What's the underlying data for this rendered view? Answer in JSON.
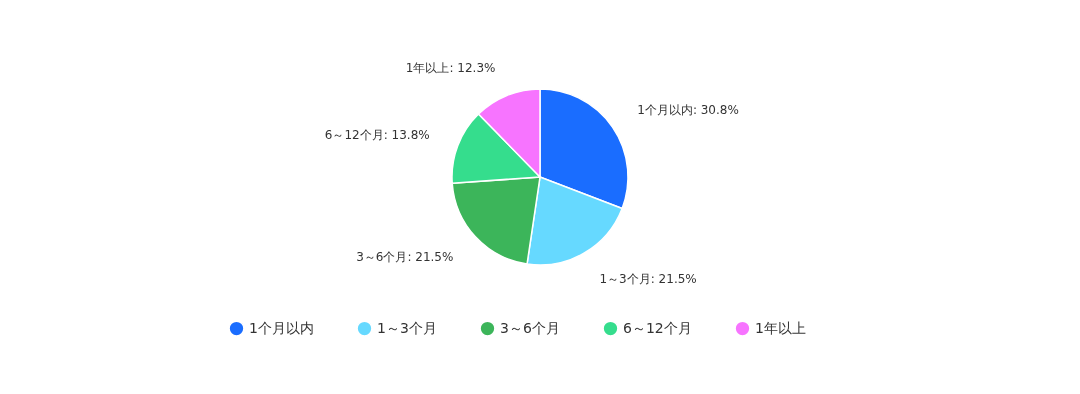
{
  "chart_data": {
    "type": "pie",
    "categories": [
      "1个月以内",
      "1～3个月",
      "3～6个月",
      "6～12个月",
      "1年以上"
    ],
    "values": [
      30.8,
      21.5,
      21.5,
      13.8,
      12.3
    ],
    "colors": [
      "#1a6dff",
      "#66d9ff",
      "#3cb55a",
      "#35dd8d",
      "#f774ff"
    ],
    "value_labels": [
      "1个月以内: 30.8%",
      "1～3个月: 21.5%",
      "3～6个月: 21.5%",
      "6～12个月: 13.8%",
      "1年以上: 12.3%"
    ],
    "legend": "bottom"
  }
}
